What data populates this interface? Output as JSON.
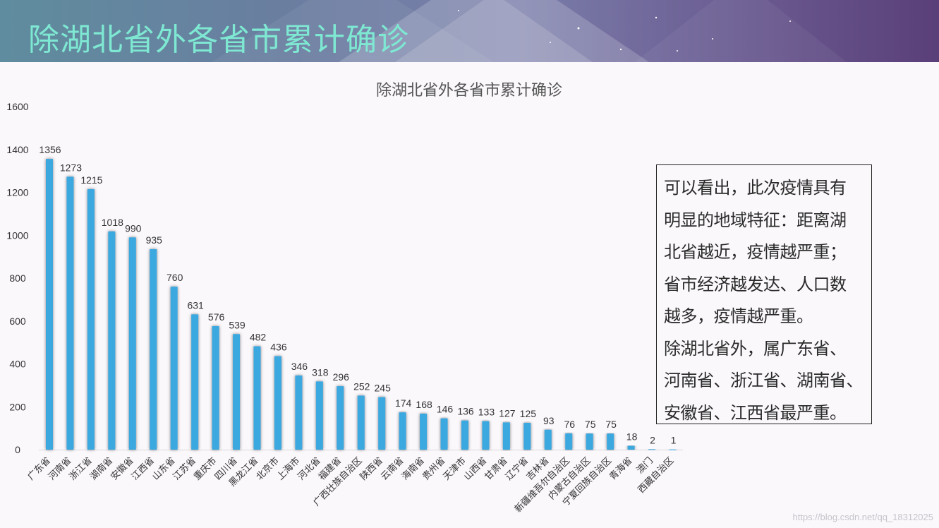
{
  "header": {
    "title": "除湖北省外各省市累计确诊"
  },
  "chart_data": {
    "type": "bar",
    "title": "除湖北省外各省市累计确诊",
    "xlabel": "",
    "ylabel": "",
    "ylim": [
      0,
      1600
    ],
    "yticks": [
      0,
      200,
      400,
      600,
      800,
      1000,
      1200,
      1400,
      1600
    ],
    "categories": [
      "广东省",
      "河南省",
      "浙江省",
      "湖南省",
      "安徽省",
      "江西省",
      "山东省",
      "江苏省",
      "重庆市",
      "四川省",
      "黑龙江省",
      "北京市",
      "上海市",
      "河北省",
      "福建省",
      "广西壮族自治区",
      "陕西省",
      "云南省",
      "海南省",
      "贵州省",
      "天津市",
      "山西省",
      "甘肃省",
      "辽宁省",
      "吉林省",
      "新疆维吾尔自治区",
      "内蒙古自治区",
      "宁夏回族自治区",
      "青海省",
      "澳门",
      "西藏自治区"
    ],
    "values": [
      1356,
      1273,
      1215,
      1018,
      990,
      935,
      760,
      631,
      576,
      539,
      482,
      436,
      346,
      318,
      296,
      252,
      245,
      174,
      168,
      146,
      136,
      133,
      127,
      125,
      93,
      76,
      75,
      75,
      18,
      2,
      1
    ],
    "bar_color": "#3aa8e0",
    "grid": false
  },
  "note": {
    "lines": [
      "可以看出，此次疫情具有",
      "明显的地域特征：距离湖",
      "北省越近，疫情越严重；",
      "省市经济越发达、人口数",
      "越多，疫情越严重。",
      "除湖北省外，属广东省、",
      "河南省、浙江省、湖南省、",
      "安徽省、江西省最严重。"
    ]
  },
  "watermark": "https://blog.csdn.net/qq_18312025"
}
